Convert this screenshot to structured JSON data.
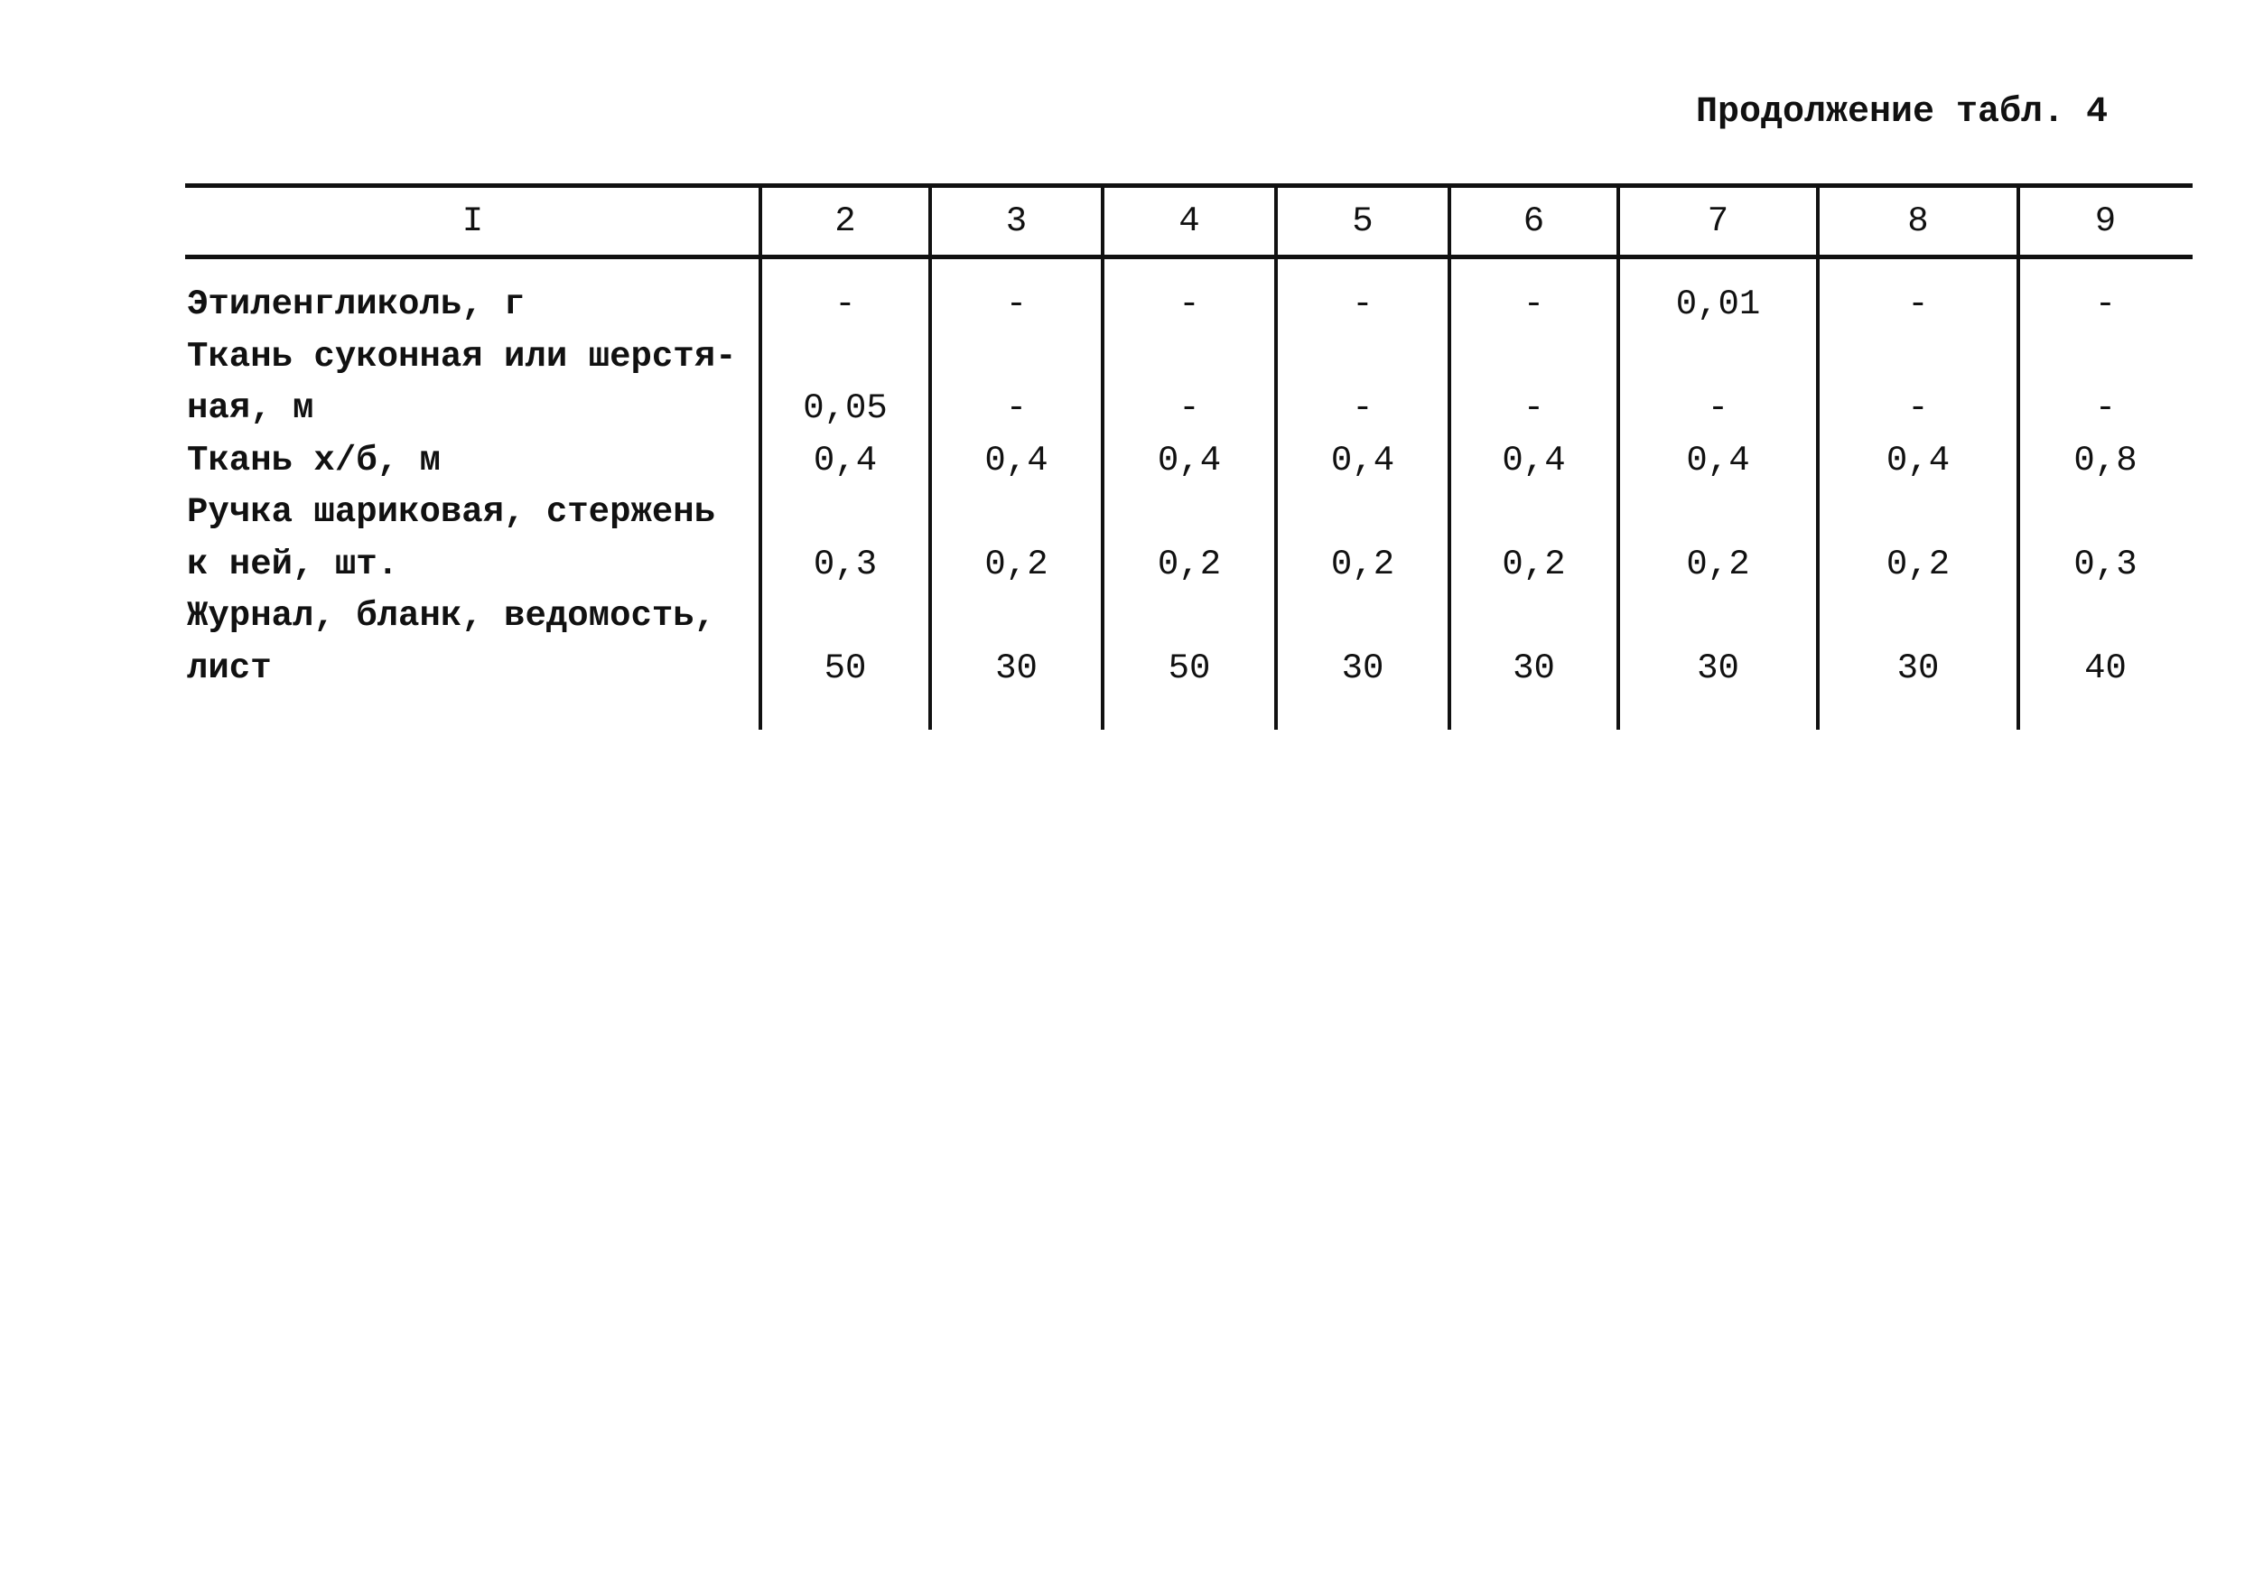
{
  "title": "Продолжение табл. 4",
  "table": {
    "headers": [
      "I",
      "2",
      "3",
      "4",
      "5",
      "6",
      "7",
      "8",
      "9"
    ],
    "rows": [
      {
        "label_lines": [
          "Этиленгликоль, г"
        ],
        "values": [
          "-",
          "-",
          "-",
          "-",
          "-",
          "0,01",
          "-",
          "-"
        ]
      },
      {
        "label_lines": [
          "Ткань суконная или шерстя-",
          "ная, м"
        ],
        "values": [
          "0,05",
          "-",
          "-",
          "-",
          "-",
          "-",
          "-",
          "-"
        ]
      },
      {
        "label_lines": [
          "Ткань х/б, м"
        ],
        "values": [
          "0,4",
          "0,4",
          "0,4",
          "0,4",
          "0,4",
          "0,4",
          "0,4",
          "0,8"
        ]
      },
      {
        "label_lines": [
          "Ручка шариковая, стержень",
          "к ней, шт."
        ],
        "values": [
          "0,3",
          "0,2",
          "0,2",
          "0,2",
          "0,2",
          "0,2",
          "0,2",
          "0,3"
        ]
      },
      {
        "label_lines": [
          "Журнал, бланк, ведомость,",
          "лист"
        ],
        "values": [
          "50",
          "30",
          "50",
          "30",
          "30",
          "30",
          "30",
          "40"
        ]
      }
    ]
  }
}
